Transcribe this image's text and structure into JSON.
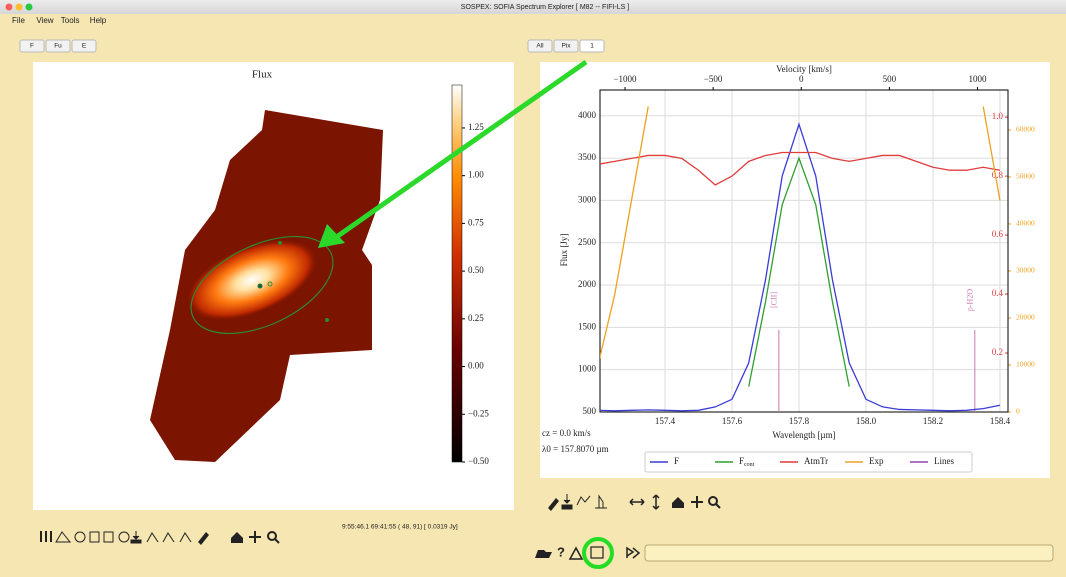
{
  "window": {
    "title": "SOSPEX: SOFIA Spectrum Explorer [ M82 -- FIFI-LS ]",
    "menu": [
      "File",
      "View",
      "Tools",
      "Help"
    ]
  },
  "left_panel": {
    "tabs": [
      "F",
      "Fu",
      "E"
    ],
    "image": {
      "title": "Flux",
      "colorbar": {
        "clim": [
          -0.5,
          1.475
        ],
        "ticks": [
          {
            "value": 1.25,
            "label": "1.25"
          },
          {
            "value": 1,
            "label": "1.00"
          },
          {
            "value": 0.75,
            "label": "0.75"
          },
          {
            "value": 0.5,
            "label": "0.50"
          },
          {
            "value": 0.25,
            "label": "0.25"
          },
          {
            "value": 0,
            "label": "0.00"
          },
          {
            "value": -0.25,
            "label": "−0.25"
          },
          {
            "value": -0.5,
            "label": "−0.50"
          }
        ]
      }
    },
    "status": "9:55:46.1 69:41:55 (  48,  91) [    0.0319 Jy]"
  },
  "right_panel": {
    "tabs": [
      "All",
      "Pix",
      "1"
    ],
    "spectrum": {
      "type": "line",
      "xlabel": "Wavelength [µm]",
      "ylabel": "Flux [Jy]",
      "xlim": [
        157.206,
        158.424
      ],
      "xticks": [
        157.4,
        157.6,
        157.8,
        {
          "value": 158,
          "label": "158.0"
        },
        158.2,
        158.4
      ],
      "ylim": [
        500,
        4305
      ],
      "yticks": [
        500,
        1000,
        1500,
        2000,
        2500,
        3000,
        3500,
        4000
      ],
      "top_axis": {
        "label": "Velocity [km/s]",
        "lim": [
          -1142,
          1173
        ],
        "ticks": [
          {
            "value": -1000,
            "label": "−1000"
          },
          {
            "value": -500,
            "label": "−500"
          },
          0,
          500,
          1000
        ]
      },
      "y2lim": [
        0,
        1.092
      ],
      "y2ticks": [
        0.2,
        0.4,
        0.6,
        0.8,
        {
          "value": 1,
          "label": "1.0"
        }
      ],
      "y3lim": [
        0,
        68500
      ],
      "y3ticks": [
        0,
        10000,
        20000,
        30000,
        40000,
        50000,
        60000
      ],
      "x": [
        157.2,
        157.25,
        157.3,
        157.35,
        157.4,
        157.45,
        157.5,
        157.55,
        157.6,
        157.65,
        157.7,
        157.75,
        157.8,
        157.85,
        157.9,
        157.95,
        158.0,
        158.05,
        158.1,
        158.15,
        158.2,
        158.25,
        158.3,
        158.35,
        158.4
      ],
      "series": [
        {
          "name": "F",
          "color": "#3b3bd6",
          "axis": "y",
          "values": [
            520,
            515,
            520,
            525,
            520,
            515,
            520,
            560,
            650,
            1080,
            2060,
            3290,
            3900,
            3290,
            2060,
            1080,
            650,
            560,
            530,
            525,
            520,
            515,
            520,
            540,
            580
          ]
        },
        {
          "name": "F",
          "name_sub": "cont",
          "color": "#2ea02e",
          "axis": "y",
          "values": [
            null,
            null,
            null,
            null,
            null,
            null,
            null,
            null,
            null,
            800,
            1800,
            2950,
            3500,
            2950,
            1800,
            800,
            null,
            null,
            null,
            null,
            null,
            null,
            null,
            null,
            null
          ]
        },
        {
          "name": "AtmTr",
          "color": "#e03c3c",
          "axis": "y2",
          "values": [
            0.84,
            0.85,
            0.86,
            0.87,
            0.87,
            0.86,
            0.82,
            0.77,
            0.8,
            0.85,
            0.87,
            0.88,
            0.88,
            0.88,
            0.86,
            0.85,
            0.86,
            0.87,
            0.87,
            0.85,
            0.83,
            0.82,
            0.82,
            0.83,
            0.82
          ]
        },
        {
          "name": "Exp",
          "color": "#f0a020",
          "axis": "y3",
          "values": [
            10000,
            25000,
            45000,
            65000,
            null,
            null,
            null,
            null,
            null,
            null,
            null,
            null,
            null,
            null,
            null,
            null,
            null,
            null,
            null,
            null,
            null,
            null,
            null,
            65000,
            45000
          ]
        }
      ],
      "lines_legend": {
        "name": "Lines",
        "color": "#8e44ad"
      },
      "lines": [
        {
          "label": "[CII]",
          "x": 157.74
        },
        {
          "label": "p-H2O",
          "x": 158.325
        }
      ],
      "annotations": [
        "cz = 0.0 km/s",
        "λ0 = 157.8070 µm"
      ]
    }
  },
  "bottom_toolbar": {
    "help": "?"
  }
}
